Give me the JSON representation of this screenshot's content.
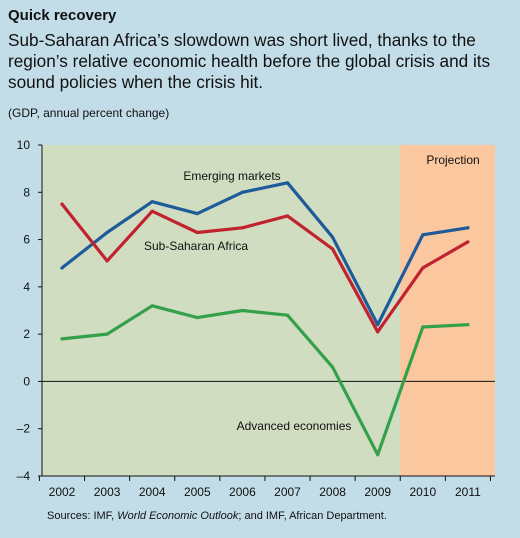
{
  "header": {
    "title": "Quick recovery",
    "subtitle": "Sub-Saharan Africa’s slowdown was short lived, thanks to the region’s relative economic health before the global crisis and its sound policies when the crisis hit.",
    "units": "(GDP, annual percent change)"
  },
  "footer": {
    "source_prefix": "Sources: IMF, ",
    "source_italic": "World Economic Outlook",
    "source_suffix": "; and IMF, African Department."
  },
  "colors": {
    "background": "#c2dde8",
    "history_band": "#d1ddc1",
    "projection_band": "#fac79f",
    "emerging_markets": "#1e5b9a",
    "sub_saharan_africa": "#c0222e",
    "advanced_economies": "#34a04a"
  },
  "chart_data": {
    "type": "line",
    "categories": [
      "2002",
      "2003",
      "2004",
      "2005",
      "2006",
      "2007",
      "2008",
      "2009",
      "2010",
      "2011"
    ],
    "ylim": [
      -4,
      10
    ],
    "yticks": [
      -4,
      -2,
      0,
      2,
      4,
      6,
      8,
      10
    ],
    "series": [
      {
        "name": "Emerging markets",
        "color": "#1e5b9a",
        "values": [
          4.8,
          6.3,
          7.6,
          7.1,
          8.0,
          8.4,
          6.1,
          2.4,
          6.2,
          6.5
        ]
      },
      {
        "name": "Sub-Saharan Africa",
        "color": "#c0222e",
        "values": [
          7.5,
          5.1,
          7.2,
          6.3,
          6.5,
          7.0,
          5.6,
          2.1,
          4.8,
          5.9
        ]
      },
      {
        "name": "Advanced economies",
        "color": "#34a04a",
        "values": [
          1.8,
          2.0,
          3.2,
          2.7,
          3.0,
          2.8,
          0.6,
          -3.1,
          2.3,
          2.4
        ]
      }
    ],
    "projection_label": "Projection",
    "projection_start": "2010",
    "grid": false
  }
}
